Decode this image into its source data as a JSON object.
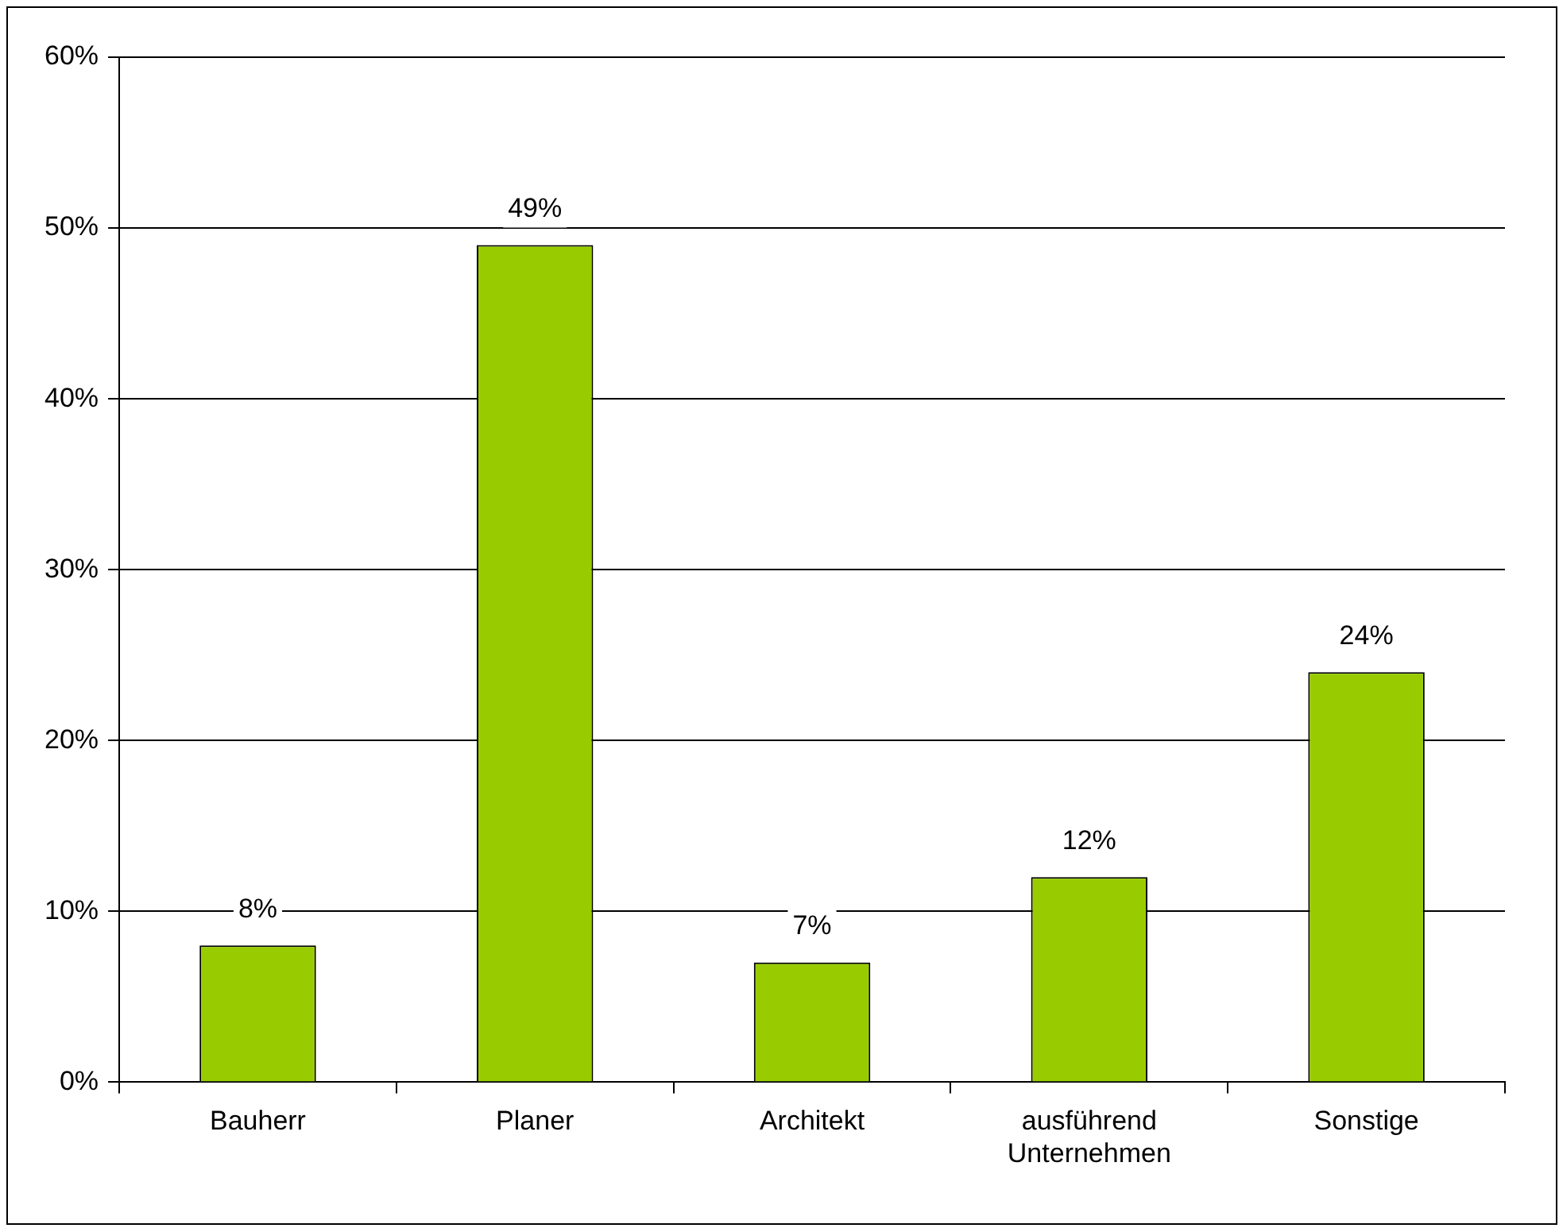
{
  "chart_data": {
    "type": "bar",
    "categories": [
      "Bauherr",
      "Planer",
      "Architekt",
      "ausführend Unternehmen",
      "Sonstige"
    ],
    "values": [
      8,
      49,
      7,
      12,
      24
    ],
    "color": "#99cc00",
    "ylim": [
      0,
      60
    ],
    "yticks": [
      {
        "value": 0,
        "label": "0%"
      },
      {
        "value": 10,
        "label": "10%"
      },
      {
        "value": 20,
        "label": "20%"
      },
      {
        "value": 30,
        "label": "30%"
      },
      {
        "value": 40,
        "label": "40%"
      },
      {
        "value": 50,
        "label": "50%"
      },
      {
        "value": 60,
        "label": "60%"
      }
    ],
    "value_labels": [
      "8%",
      "49%",
      "7%",
      "12%",
      "24%"
    ],
    "grid": "y",
    "legend": false
  }
}
